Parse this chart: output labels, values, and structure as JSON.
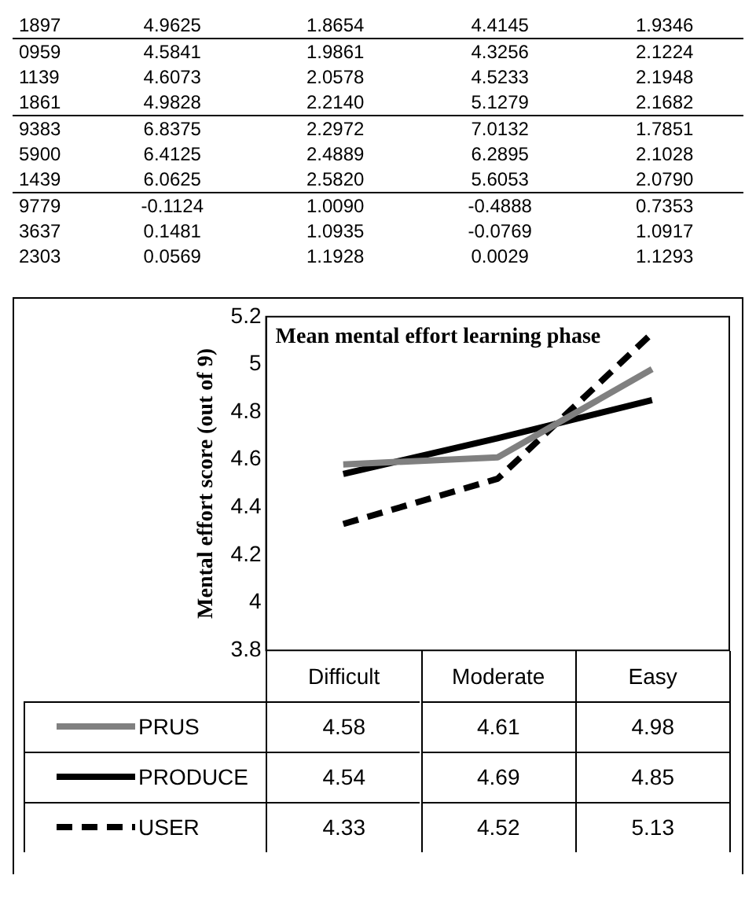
{
  "chart_data": [
    {
      "type": "other",
      "annotations": [
        "1897 4.9625 1.8654 4.4145 1.9346",
        "0959 4.5841 1.9861 4.3256 2.1224",
        "1139 4.6073 2.0578 4.5233 2.1948",
        "1861 4.9828 2.2140 5.1279 2.1682",
        "9383 6.8375 2.2972 7.0132 1.7851",
        "5900 6.4125 2.4889 6.2895 2.1028",
        "1439 6.0625 2.5820 5.6053 2.0790",
        "9779 -0.1124 1.0090 -0.4888 0.7353",
        "3637 0.1481 1.0935 -0.0769 1.0917",
        "2303 0.0569 1.1928 0.0029 1.1293"
      ]
    },
    {
      "type": "line",
      "title": "Mean mental effort learning phase",
      "ylabel": "Mental effort score (out of 9)",
      "categories": [
        "Difficult",
        "Moderate",
        "Easy"
      ],
      "ylim": [
        3.8,
        5.2
      ],
      "yticks": [
        3.8,
        4,
        4.2,
        4.4,
        4.6,
        4.8,
        5,
        5.2
      ],
      "grid": false,
      "legend": "bottom",
      "data_labels": true,
      "marker": "none",
      "series": [
        {
          "name": "PRUS",
          "color": "#808080",
          "line_style": "solid",
          "values": [
            4.58,
            4.61,
            4.98
          ]
        },
        {
          "name": "PRODUCE",
          "color": "#000000",
          "line_style": "solid",
          "values": [
            4.54,
            4.69,
            4.85
          ]
        },
        {
          "name": "USER",
          "color": "#000000",
          "line_style": "dashed",
          "values": [
            4.33,
            4.52,
            5.13
          ]
        }
      ]
    }
  ]
}
